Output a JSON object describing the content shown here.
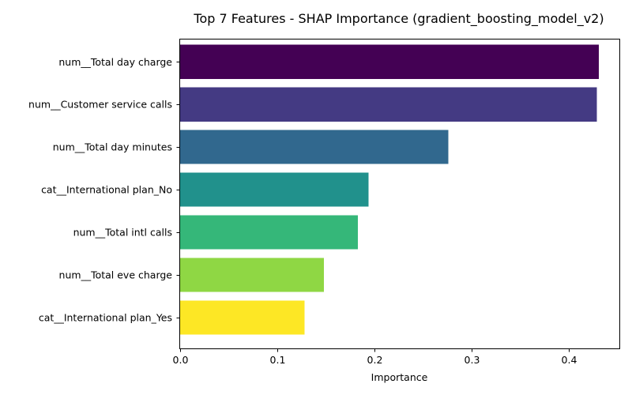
{
  "chart_data": {
    "type": "bar",
    "orientation": "horizontal",
    "title": "Top 7 Features - SHAP Importance (gradient_boosting_model_v2)",
    "xlabel": "Importance",
    "ylabel": "",
    "xlim": [
      0,
      0.452
    ],
    "xticks": [
      0.0,
      0.1,
      0.2,
      0.3,
      0.4
    ],
    "xtick_labels": [
      "0.0",
      "0.1",
      "0.2",
      "0.3",
      "0.4"
    ],
    "grid": false,
    "legend": "none",
    "categories": [
      "num__Total day charge",
      "num__Customer service calls",
      "num__Total day minutes",
      "cat__International plan_No",
      "num__Total intl calls",
      "num__Total eve charge",
      "cat__International plan_Yes"
    ],
    "values": [
      0.431,
      0.429,
      0.276,
      0.194,
      0.183,
      0.148,
      0.128
    ],
    "colors": [
      "#440154",
      "#443a83",
      "#31688e",
      "#21918c",
      "#35b779",
      "#8fd744",
      "#fde725"
    ]
  }
}
